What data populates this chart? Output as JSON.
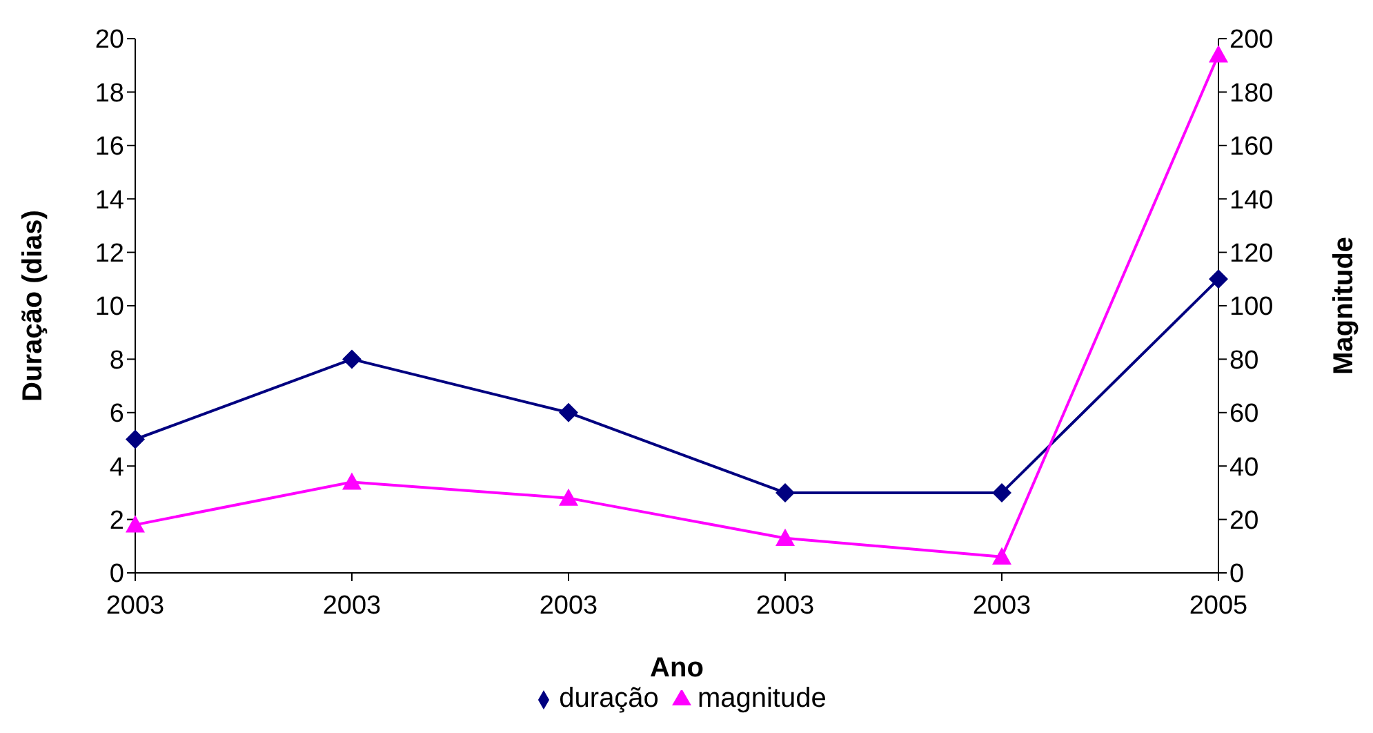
{
  "chart_data": {
    "type": "line",
    "xlabel": "Ano",
    "ylabel": "Duração (dias)",
    "y2label": "Magnitude",
    "categories": [
      "2003",
      "2003",
      "2003",
      "2003",
      "2003",
      "2005"
    ],
    "series": [
      {
        "name": "duração",
        "color": "#000080",
        "values": [
          5,
          8,
          6,
          3,
          3,
          11
        ],
        "marker": "diamond"
      },
      {
        "name": "magnitude",
        "color": "#ff00ff",
        "values": [
          18,
          34,
          28,
          13,
          6,
          194
        ],
        "marker": "triangle",
        "axis": "y2"
      }
    ],
    "ylim": [
      0,
      20
    ],
    "yticks": [
      0,
      2,
      4,
      6,
      8,
      10,
      12,
      14,
      16,
      18,
      20
    ],
    "y2lim": [
      0,
      200
    ],
    "y2ticks": [
      0,
      20,
      40,
      60,
      80,
      100,
      120,
      140,
      160,
      180,
      200
    ],
    "grid": false,
    "legend": "bottom",
    "line_style": "solid"
  }
}
